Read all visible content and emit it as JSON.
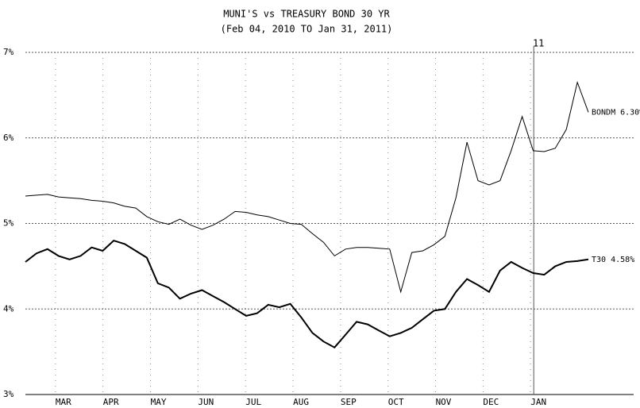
{
  "chart_data": {
    "type": "line",
    "title": "MUNI'S vs TREASURY BOND 30 YR",
    "subtitle": "(Feb 04, 2010 TO Jan 31, 2011)",
    "x_labels": [
      "MAR",
      "APR",
      "MAY",
      "JUN",
      "JUL",
      "AUG",
      "SEP",
      "OCT",
      "NOV",
      "DEC",
      "JAN"
    ],
    "ylim": [
      3,
      7
    ],
    "yticks": [
      {
        "value": 3,
        "label": "3%"
      },
      {
        "value": 4,
        "label": "4%"
      },
      {
        "value": 5,
        "label": "5%"
      },
      {
        "value": 6,
        "label": "6%"
      },
      {
        "value": 7,
        "label": "7%"
      }
    ],
    "grid": true,
    "annotations": [
      "11"
    ],
    "series": [
      {
        "name": "BONDM",
        "end_label": "BONDM 6.30%",
        "color": "#000000",
        "values": [
          5.32,
          5.33,
          5.34,
          5.31,
          5.3,
          5.29,
          5.27,
          5.26,
          5.24,
          5.2,
          5.18,
          5.08,
          5.02,
          4.99,
          5.05,
          4.98,
          4.93,
          4.98,
          5.05,
          5.14,
          5.13,
          5.1,
          5.08,
          5.04,
          5.0,
          4.99,
          4.88,
          4.78,
          4.62,
          4.7,
          4.72,
          4.72,
          4.71,
          4.7,
          4.2,
          4.66,
          4.68,
          4.75,
          4.85,
          5.3,
          5.95,
          5.5,
          5.45,
          5.5,
          5.85,
          6.25,
          5.85,
          5.84,
          5.88,
          6.1,
          6.65,
          6.3
        ]
      },
      {
        "name": "T30",
        "end_label": "T30 4.58%",
        "color": "#000000",
        "values": [
          4.55,
          4.65,
          4.7,
          4.62,
          4.58,
          4.62,
          4.72,
          4.68,
          4.8,
          4.76,
          4.68,
          4.6,
          4.3,
          4.25,
          4.12,
          4.18,
          4.22,
          4.15,
          4.08,
          4.0,
          3.92,
          3.95,
          4.05,
          4.02,
          4.06,
          3.9,
          3.72,
          3.62,
          3.55,
          3.7,
          3.85,
          3.82,
          3.75,
          3.68,
          3.72,
          3.78,
          3.88,
          3.98,
          4.0,
          4.2,
          4.35,
          4.28,
          4.2,
          4.45,
          4.55,
          4.48,
          4.42,
          4.4,
          4.5,
          4.55,
          4.56,
          4.58
        ]
      }
    ]
  }
}
